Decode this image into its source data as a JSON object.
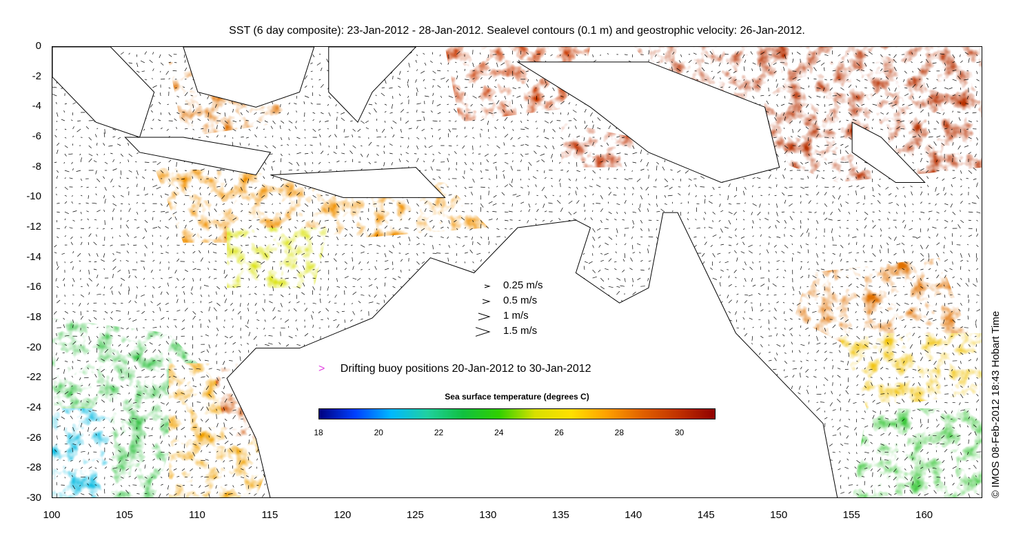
{
  "title": "SST (6 day composite): 23-Jan-2012 - 28-Jan-2012. Sealevel contours (0.1 m) and geostrophic velocity: 26-Jan-2012.",
  "axes": {
    "x": {
      "min": 100,
      "max": 164,
      "ticks": [
        "100",
        "105",
        "110",
        "115",
        "120",
        "125",
        "130",
        "135",
        "140",
        "145",
        "150",
        "155",
        "160"
      ]
    },
    "y": {
      "min": -30,
      "max": 0,
      "ticks": [
        "0",
        "-2",
        "-4",
        "-6",
        "-8",
        "-10",
        "-12",
        "-14",
        "-16",
        "-18",
        "-20",
        "-22",
        "-24",
        "-26",
        "-28",
        "-30"
      ]
    }
  },
  "velocity_legend": [
    {
      "speed": 0.25,
      "label": "0.25 m/s"
    },
    {
      "speed": 0.5,
      "label": "0.5 m/s"
    },
    {
      "speed": 1,
      "label": "1 m/s"
    },
    {
      "speed": 1.5,
      "label": "1.5 m/s"
    }
  ],
  "buoy_legend": {
    "label": "Drifting buoy positions 20-Jan-2012 to 30-Jan-2012",
    "color": "#e040e0"
  },
  "colorbar": {
    "title": "Sea surface temperature (degrees C)",
    "min": 18,
    "max": 31.2,
    "ticks": [
      "18",
      "20",
      "22",
      "24",
      "26",
      "28",
      "30"
    ],
    "stops": [
      "#00007f",
      "#0040ff",
      "#00b8ff",
      "#20d0a0",
      "#10c040",
      "#30d000",
      "#d8e000",
      "#ffe000",
      "#ffa000",
      "#e06000",
      "#c03000",
      "#900000"
    ]
  },
  "credit": "© IMOS 08-Feb-2012 18:43 Hobart Time",
  "land_color": "#ffffff",
  "coast_color": "#000000"
}
